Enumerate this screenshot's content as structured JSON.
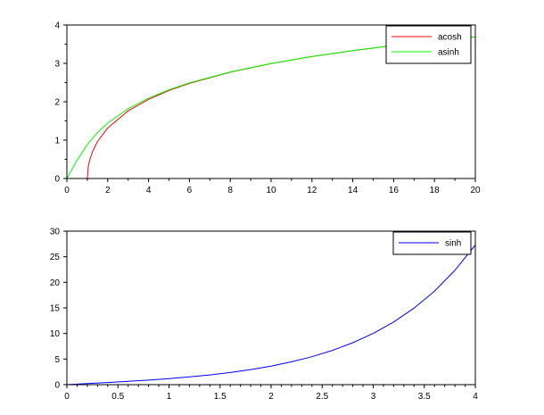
{
  "chart_data": [
    {
      "type": "line",
      "xlim": [
        0,
        20
      ],
      "ylim": [
        0,
        4
      ],
      "xticks": [
        "0",
        "2",
        "4",
        "6",
        "8",
        "10",
        "12",
        "14",
        "16",
        "18",
        "20"
      ],
      "yticks": [
        "0",
        "1",
        "2",
        "3",
        "4"
      ],
      "legend_position": "top-right",
      "grid": false,
      "series": [
        {
          "name": "acosh",
          "color": "#ff0000",
          "x": [
            1,
            1.05,
            1.1,
            1.25,
            1.5,
            2,
            3,
            4,
            5,
            6,
            8,
            10,
            12,
            14,
            16,
            18,
            20
          ],
          "y": [
            0,
            0.315,
            0.444,
            0.693,
            0.962,
            1.317,
            1.763,
            2.063,
            2.292,
            2.478,
            2.769,
            2.993,
            3.176,
            3.331,
            3.465,
            3.582,
            3.689
          ]
        },
        {
          "name": "asinh",
          "color": "#00ff00",
          "x": [
            0,
            0.5,
            1,
            1.5,
            2,
            3,
            4,
            5,
            6,
            8,
            10,
            12,
            14,
            16,
            18,
            20
          ],
          "y": [
            0,
            0.481,
            0.881,
            1.195,
            1.444,
            1.818,
            2.095,
            2.312,
            2.492,
            2.776,
            2.998,
            3.18,
            3.334,
            3.467,
            3.584,
            3.689
          ]
        }
      ]
    },
    {
      "type": "line",
      "xlim": [
        0,
        4
      ],
      "ylim": [
        0,
        30
      ],
      "xticks": [
        "0",
        "0.5",
        "1",
        "1.5",
        "2",
        "2.5",
        "3",
        "3.5",
        "4"
      ],
      "yticks": [
        "0",
        "5",
        "10",
        "15",
        "20",
        "25",
        "30"
      ],
      "legend_position": "top-right",
      "grid": false,
      "series": [
        {
          "name": "sinh",
          "color": "#0000ff",
          "x": [
            0,
            0.2,
            0.4,
            0.6,
            0.8,
            1,
            1.2,
            1.4,
            1.6,
            1.8,
            2,
            2.2,
            2.4,
            2.6,
            2.8,
            3,
            3.2,
            3.4,
            3.6,
            3.8,
            4
          ],
          "y": [
            0,
            0.201,
            0.411,
            0.637,
            0.888,
            1.175,
            1.509,
            1.904,
            2.376,
            2.942,
            3.627,
            4.457,
            5.466,
            6.695,
            8.192,
            10.018,
            12.246,
            14.965,
            18.285,
            22.339,
            27.29
          ]
        }
      ]
    }
  ]
}
